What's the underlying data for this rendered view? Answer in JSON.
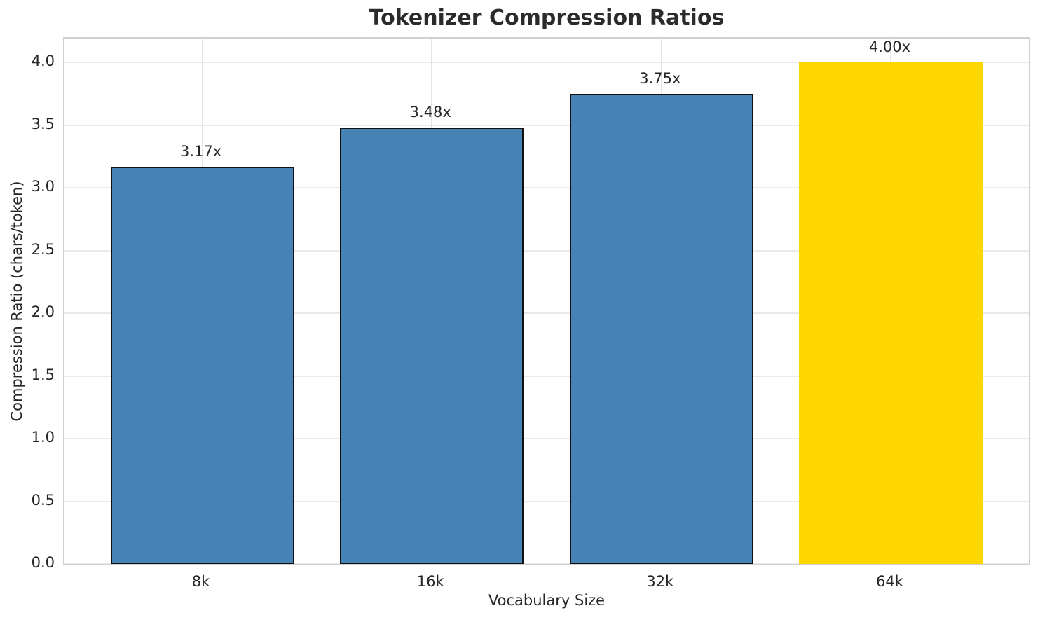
{
  "chart_data": {
    "type": "bar",
    "title": "Tokenizer Compression Ratios",
    "xlabel": "Vocabulary Size",
    "ylabel": "Compression Ratio (chars/token)",
    "categories": [
      "8k",
      "16k",
      "32k",
      "64k"
    ],
    "values": [
      3.17,
      3.48,
      3.75,
      4.0
    ],
    "bar_labels": [
      "3.17x",
      "3.48x",
      "3.75x",
      "4.00x"
    ],
    "bar_colors": [
      "#4682B4",
      "#4682B4",
      "#4682B4",
      "#FFD700"
    ],
    "bar_edge_colors": [
      "#111111",
      "#111111",
      "#111111",
      "none"
    ],
    "highlight_color": "#FFD700",
    "base_color": "#4682B4",
    "yticks": [
      "0.0",
      "0.5",
      "1.0",
      "1.5",
      "2.0",
      "2.5",
      "3.0",
      "3.5",
      "4.0"
    ],
    "ylim": [
      0,
      4.19
    ],
    "grid": true,
    "legend": false
  }
}
